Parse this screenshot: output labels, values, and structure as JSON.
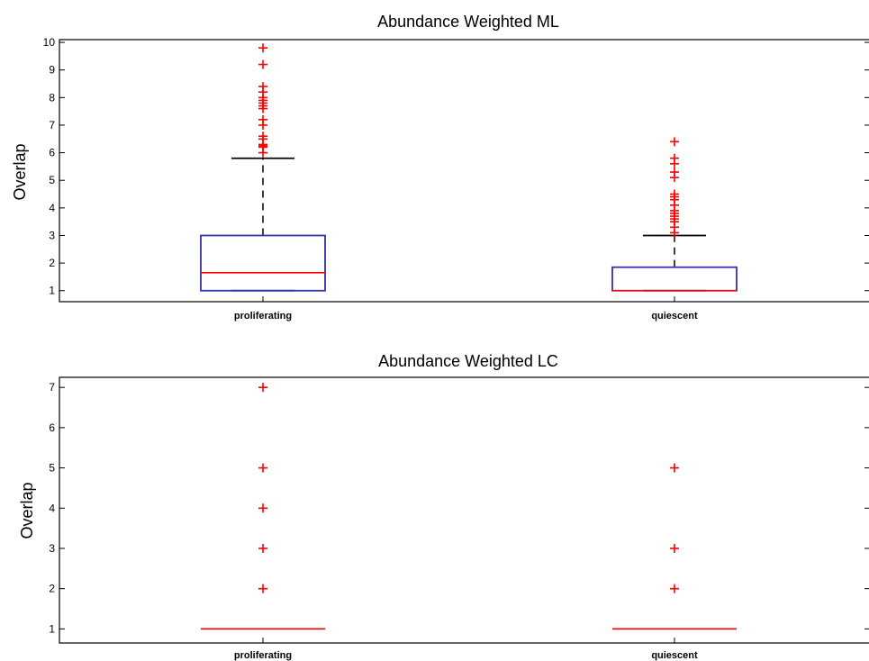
{
  "chart_data": [
    {
      "type": "box",
      "title": "Abundance Weighted ML",
      "xlabel": "",
      "ylabel": "Overlap",
      "ylim": [
        0.6,
        10.1
      ],
      "yticks": [
        "1",
        "2",
        "3",
        "4",
        "5",
        "6",
        "7",
        "8",
        "9",
        "10"
      ],
      "categories": [
        "proliferating",
        "quiescent"
      ],
      "boxes": [
        {
          "category": "proliferating",
          "whisker_low": 1.0,
          "q1": 1.0,
          "median": 1.65,
          "q3": 3.0,
          "whisker_high": 5.8,
          "outliers": [
            6.0,
            6.2,
            6.25,
            6.3,
            6.5,
            6.6,
            7.0,
            7.2,
            7.6,
            7.7,
            7.8,
            7.9,
            8.0,
            8.2,
            8.4,
            9.2,
            9.8
          ]
        },
        {
          "category": "quiescent",
          "whisker_low": 1.0,
          "q1": 1.0,
          "median": 1.0,
          "q3": 1.85,
          "whisker_high": 3.0,
          "outliers": [
            3.1,
            3.3,
            3.5,
            3.6,
            3.7,
            3.8,
            3.9,
            4.1,
            4.3,
            4.4,
            4.5,
            5.1,
            5.3,
            5.6,
            5.8,
            6.4
          ]
        }
      ],
      "grid": false,
      "colors": {
        "box": "#3333aa",
        "median": "#ff0000",
        "whisker": "#000000",
        "outlier": "#ff0000"
      }
    },
    {
      "type": "box",
      "title": "Abundance Weighted LC",
      "xlabel": "",
      "ylabel": "Overlap",
      "ylim": [
        0.65,
        7.25
      ],
      "yticks": [
        "1",
        "2",
        "3",
        "4",
        "5",
        "6",
        "7"
      ],
      "categories": [
        "proliferating",
        "quiescent"
      ],
      "boxes": [
        {
          "category": "proliferating",
          "whisker_low": 1.0,
          "q1": 1.0,
          "median": 1.0,
          "q3": 1.0,
          "whisker_high": 1.0,
          "outliers": [
            2,
            3,
            4,
            5,
            7
          ]
        },
        {
          "category": "quiescent",
          "whisker_low": 1.0,
          "q1": 1.0,
          "median": 1.0,
          "q3": 1.0,
          "whisker_high": 1.0,
          "outliers": [
            2,
            3,
            5
          ]
        }
      ],
      "grid": false,
      "colors": {
        "box": "#3333aa",
        "median": "#ff0000",
        "whisker": "#000000",
        "outlier": "#ff0000"
      }
    }
  ]
}
